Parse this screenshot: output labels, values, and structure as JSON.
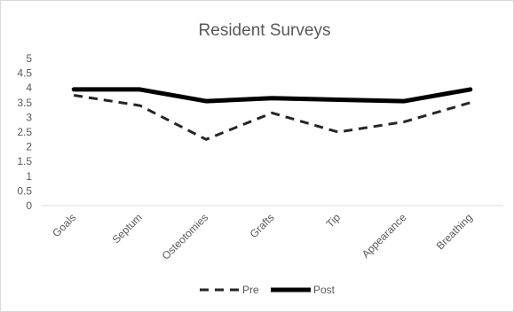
{
  "chart_data": {
    "type": "line",
    "title": "Resident Surveys",
    "xlabel": "",
    "ylabel": "",
    "categories": [
      "Goals",
      "Septum",
      "Osteotomies",
      "Grafts",
      "Tip",
      "Appearance",
      "Breathing"
    ],
    "yticks": [
      "0",
      "0.5",
      "1",
      "1.5",
      "2",
      "2.5",
      "3",
      "3.5",
      "4",
      "4.5",
      "5"
    ],
    "ylim": [
      0,
      5
    ],
    "grid": false,
    "legend_position": "bottom",
    "series": [
      {
        "name": "Pre",
        "style": "dashed",
        "color": "#262626",
        "values": [
          3.75,
          3.4,
          2.25,
          3.15,
          2.5,
          2.85,
          3.5
        ]
      },
      {
        "name": "Post",
        "style": "solid",
        "color": "#000000",
        "values": [
          3.95,
          3.95,
          3.55,
          3.65,
          3.6,
          3.55,
          3.95
        ]
      }
    ]
  }
}
